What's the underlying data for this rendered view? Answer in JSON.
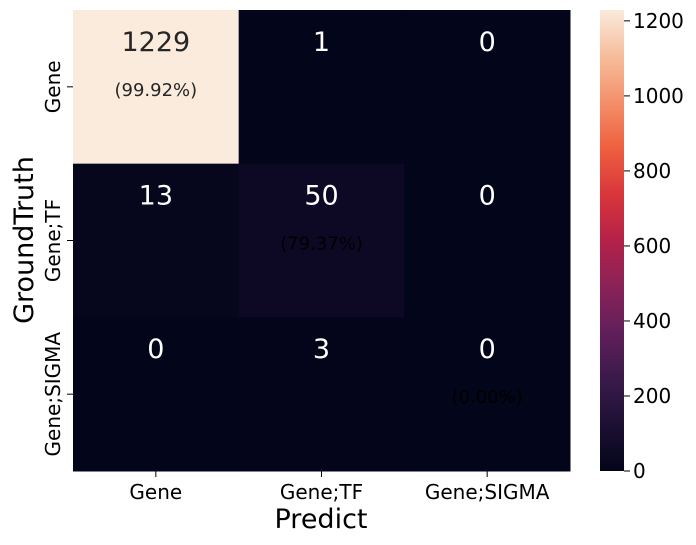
{
  "chart_data": {
    "type": "heatmap",
    "xlabel": "Predict",
    "ylabel": "GroundTruth",
    "x_categories": [
      "Gene",
      "Gene;TF",
      "Gene;SIGMA"
    ],
    "y_categories": [
      "Gene",
      "Gene;TF",
      "Gene;SIGMA"
    ],
    "values": [
      [
        1229,
        1,
        0
      ],
      [
        13,
        50,
        0
      ],
      [
        0,
        3,
        0
      ]
    ],
    "diagonal_percent_labels": [
      "(99.92%)",
      "(79.37%)",
      "(0.00%)"
    ],
    "colorbar": {
      "range": [
        0,
        1229
      ],
      "ticks": [
        0,
        200,
        400,
        600,
        800,
        1000,
        1200
      ],
      "colormap": "rocket"
    }
  }
}
